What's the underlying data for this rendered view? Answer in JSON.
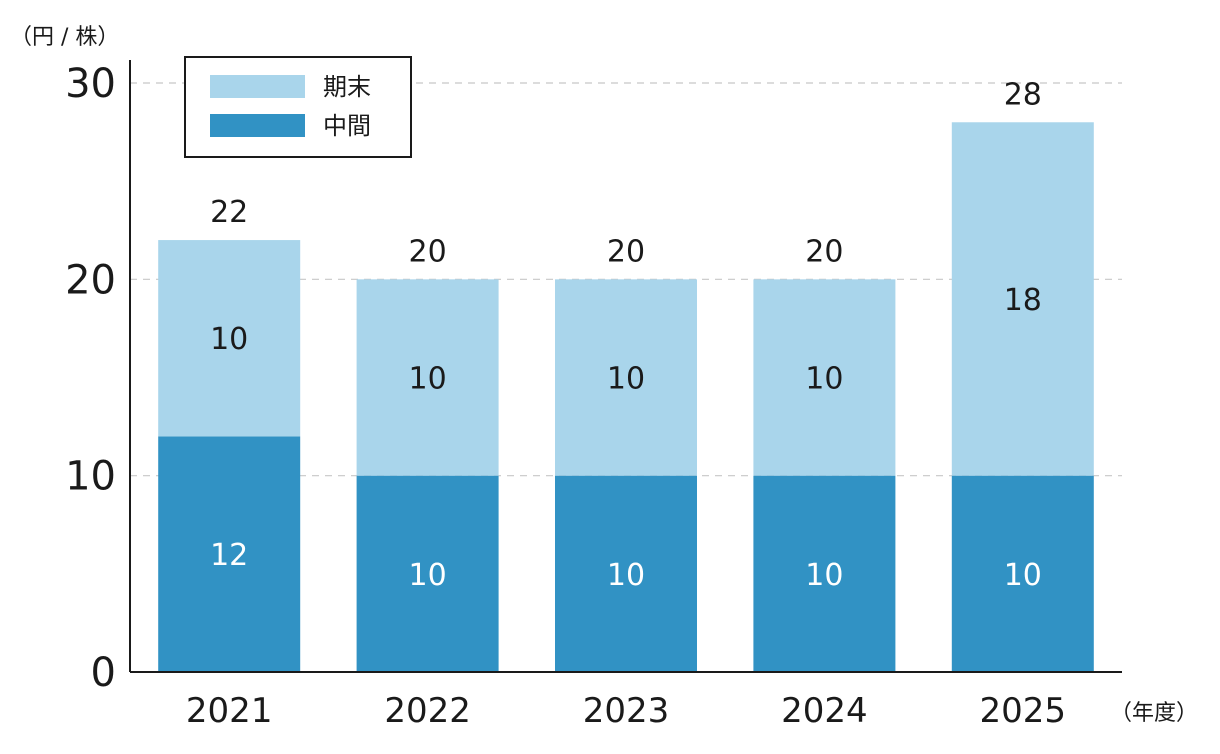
{
  "chart_data": {
    "type": "bar",
    "stacked": true,
    "unit_label": "（円 / 株）",
    "x_unit_label": "（年度）",
    "categories": [
      "2021",
      "2022",
      "2023",
      "2024",
      "2025"
    ],
    "series": [
      {
        "name": "中間",
        "values": [
          12,
          10,
          10,
          10,
          10
        ],
        "color": "#3192c4",
        "label_color": "#ffffff"
      },
      {
        "name": "期末",
        "values": [
          10,
          10,
          10,
          10,
          18
        ],
        "color": "#a9d5eb",
        "label_color": "#1a1a1a"
      }
    ],
    "totals": [
      22,
      20,
      20,
      20,
      28
    ],
    "ylim": [
      0,
      30
    ],
    "yticks": [
      0,
      10,
      20,
      30
    ],
    "grid": true,
    "legend_position": "top-left"
  }
}
